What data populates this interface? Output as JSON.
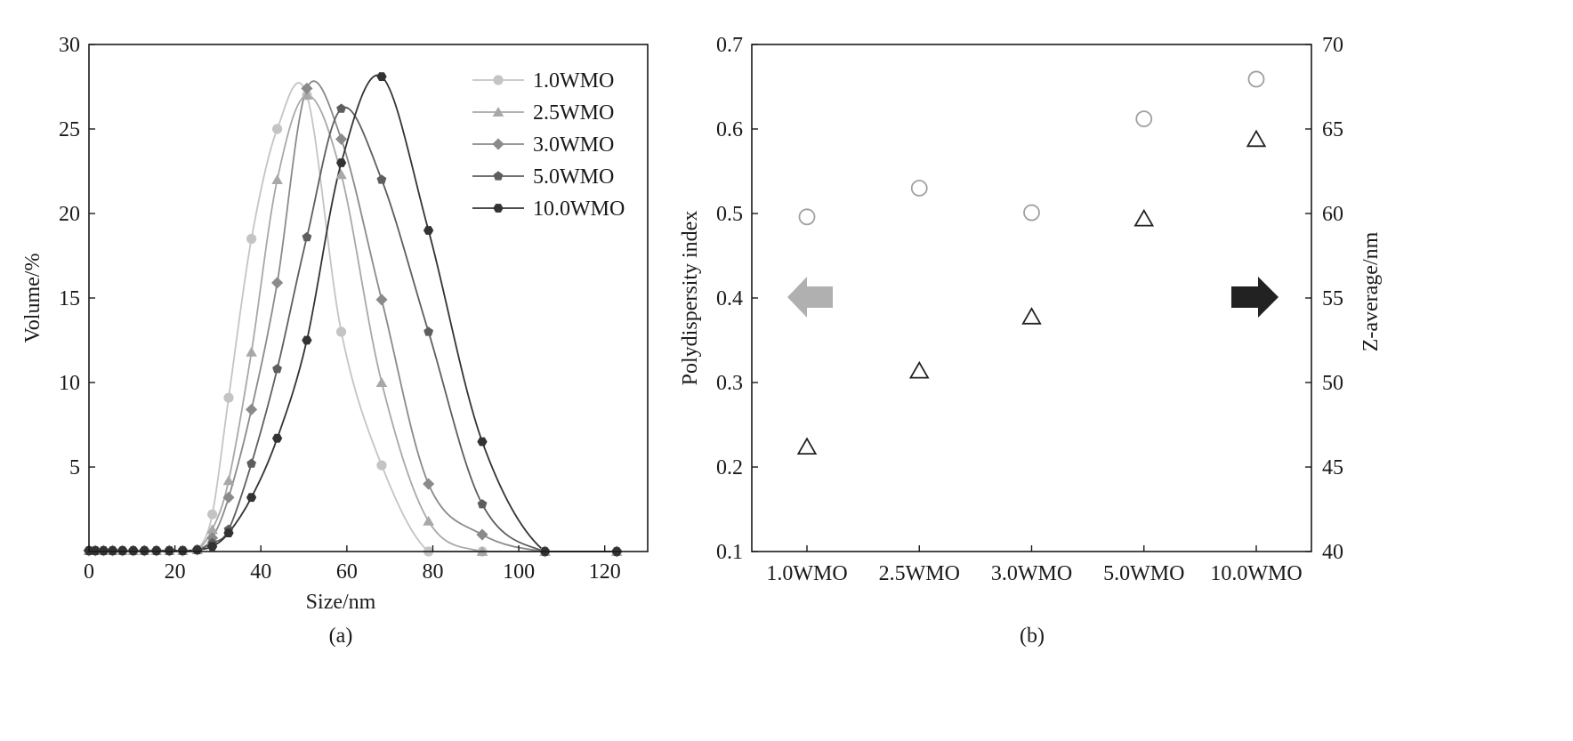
{
  "chart_data": [
    {
      "type": "line",
      "panel_label": "(a)",
      "xlabel": "Size/nm",
      "ylabel": "Volume/%",
      "xlim": [
        0,
        130
      ],
      "ylim": [
        0,
        30
      ],
      "xticks": [
        "0",
        "20",
        "40",
        "60",
        "80",
        "100",
        "120"
      ],
      "yticks": [
        "5",
        "10",
        "15",
        "20",
        "25",
        "30"
      ],
      "ytick_values": [
        5,
        10,
        15,
        20,
        25,
        30
      ],
      "xtick_values": [
        0,
        20,
        40,
        60,
        80,
        100,
        120
      ],
      "legend_position": "top-right",
      "series": [
        {
          "name": "1.0WMO",
          "marker": "circle",
          "color": "#c4c4c4",
          "x": [
            0,
            1.5,
            3.4,
            5.5,
            7.8,
            10.3,
            12.9,
            15.7,
            18.7,
            21.8,
            25.2,
            28.7,
            32.5,
            37.8,
            43.8,
            50.7,
            58.7,
            68.1,
            79.0,
            91.5,
            106.1,
            122.8
          ],
          "y": [
            0.05,
            0.05,
            0.05,
            0.05,
            0.05,
            0.05,
            0.05,
            0.05,
            0.05,
            0.05,
            0.1,
            2.2,
            9.1,
            18.5,
            25.0,
            27.0,
            13.0,
            5.1,
            0.0,
            0.0,
            0.0,
            0.0
          ]
        },
        {
          "name": "2.5WMO",
          "marker": "triangle",
          "color": "#a8a8a8",
          "x": [
            0,
            1.5,
            3.4,
            5.5,
            7.8,
            10.3,
            12.9,
            15.7,
            18.7,
            21.8,
            25.2,
            28.7,
            32.5,
            37.8,
            43.8,
            50.7,
            58.7,
            68.1,
            79.0,
            91.5,
            106.1,
            122.8
          ],
          "y": [
            0.05,
            0.05,
            0.05,
            0.05,
            0.05,
            0.05,
            0.05,
            0.05,
            0.05,
            0.05,
            0.1,
            1.3,
            4.2,
            11.8,
            22.0,
            27.0,
            22.3,
            10.0,
            1.8,
            0.0,
            0.0,
            0.0
          ]
        },
        {
          "name": "3.0WMO",
          "marker": "diamond",
          "color": "#8a8a8a",
          "x": [
            0,
            1.5,
            3.4,
            5.5,
            7.8,
            10.3,
            12.9,
            15.7,
            18.7,
            21.8,
            25.2,
            28.7,
            32.5,
            37.8,
            43.8,
            50.7,
            58.7,
            68.1,
            79.0,
            91.5,
            106.1,
            122.8
          ],
          "y": [
            0.05,
            0.05,
            0.05,
            0.05,
            0.05,
            0.05,
            0.05,
            0.05,
            0.05,
            0.05,
            0.1,
            0.8,
            3.2,
            8.4,
            15.9,
            27.4,
            24.4,
            14.9,
            4.0,
            1.0,
            0.0,
            0.0
          ]
        },
        {
          "name": "5.0WMO",
          "marker": "pentagon",
          "color": "#5e5e5e",
          "x": [
            0,
            1.5,
            3.4,
            5.5,
            7.8,
            10.3,
            12.9,
            15.7,
            18.7,
            21.8,
            25.2,
            28.7,
            32.5,
            37.8,
            43.8,
            50.7,
            58.7,
            68.1,
            79.0,
            91.5,
            106.1,
            122.8
          ],
          "y": [
            0.05,
            0.05,
            0.05,
            0.05,
            0.05,
            0.05,
            0.05,
            0.05,
            0.05,
            0.05,
            0.1,
            0.5,
            1.3,
            5.2,
            10.8,
            18.6,
            26.2,
            22.0,
            13.0,
            2.8,
            0.0,
            0.0
          ]
        },
        {
          "name": "10.0WMO",
          "marker": "hexagon",
          "color": "#333333",
          "x": [
            0,
            1.5,
            3.4,
            5.5,
            7.8,
            10.3,
            12.9,
            15.7,
            18.7,
            21.8,
            25.2,
            28.7,
            32.5,
            37.8,
            43.8,
            50.7,
            58.7,
            68.1,
            79.0,
            91.5,
            106.1,
            122.8
          ],
          "y": [
            0.05,
            0.05,
            0.05,
            0.05,
            0.05,
            0.05,
            0.05,
            0.05,
            0.05,
            0.05,
            0.1,
            0.3,
            1.1,
            3.2,
            6.7,
            12.5,
            23.0,
            28.1,
            19.0,
            6.5,
            0.0,
            0.0
          ]
        }
      ]
    },
    {
      "type": "scatter",
      "panel_label": "(b)",
      "categories": [
        "1.0WMO",
        "2.5WMO",
        "3.0WMO",
        "5.0WMO",
        "10.0WMO"
      ],
      "ylabel_left": "Polydispersity index",
      "ylabel_right": "Z-average/nm",
      "ylim_left": [
        0.1,
        0.7
      ],
      "ylim_right": [
        40,
        70
      ],
      "yticks_left": [
        "0.1",
        "0.2",
        "0.3",
        "0.4",
        "0.5",
        "0.6",
        "0.7"
      ],
      "yticks_right": [
        "40",
        "45",
        "50",
        "55",
        "60",
        "65",
        "70"
      ],
      "series": [
        {
          "axis": "left",
          "marker": "circle-open",
          "color": "#a0a0a0",
          "values": [
            0.496,
            0.53,
            0.501,
            0.612,
            0.659
          ]
        },
        {
          "axis": "right",
          "marker": "triangle-open",
          "color": "#222222",
          "values": [
            46.2,
            50.7,
            53.9,
            59.7,
            64.4
          ]
        }
      ],
      "arrows": [
        {
          "direction": "left",
          "axis": "left",
          "color": "#b0b0b0"
        },
        {
          "direction": "right",
          "axis": "right",
          "color": "#222222"
        }
      ]
    }
  ]
}
